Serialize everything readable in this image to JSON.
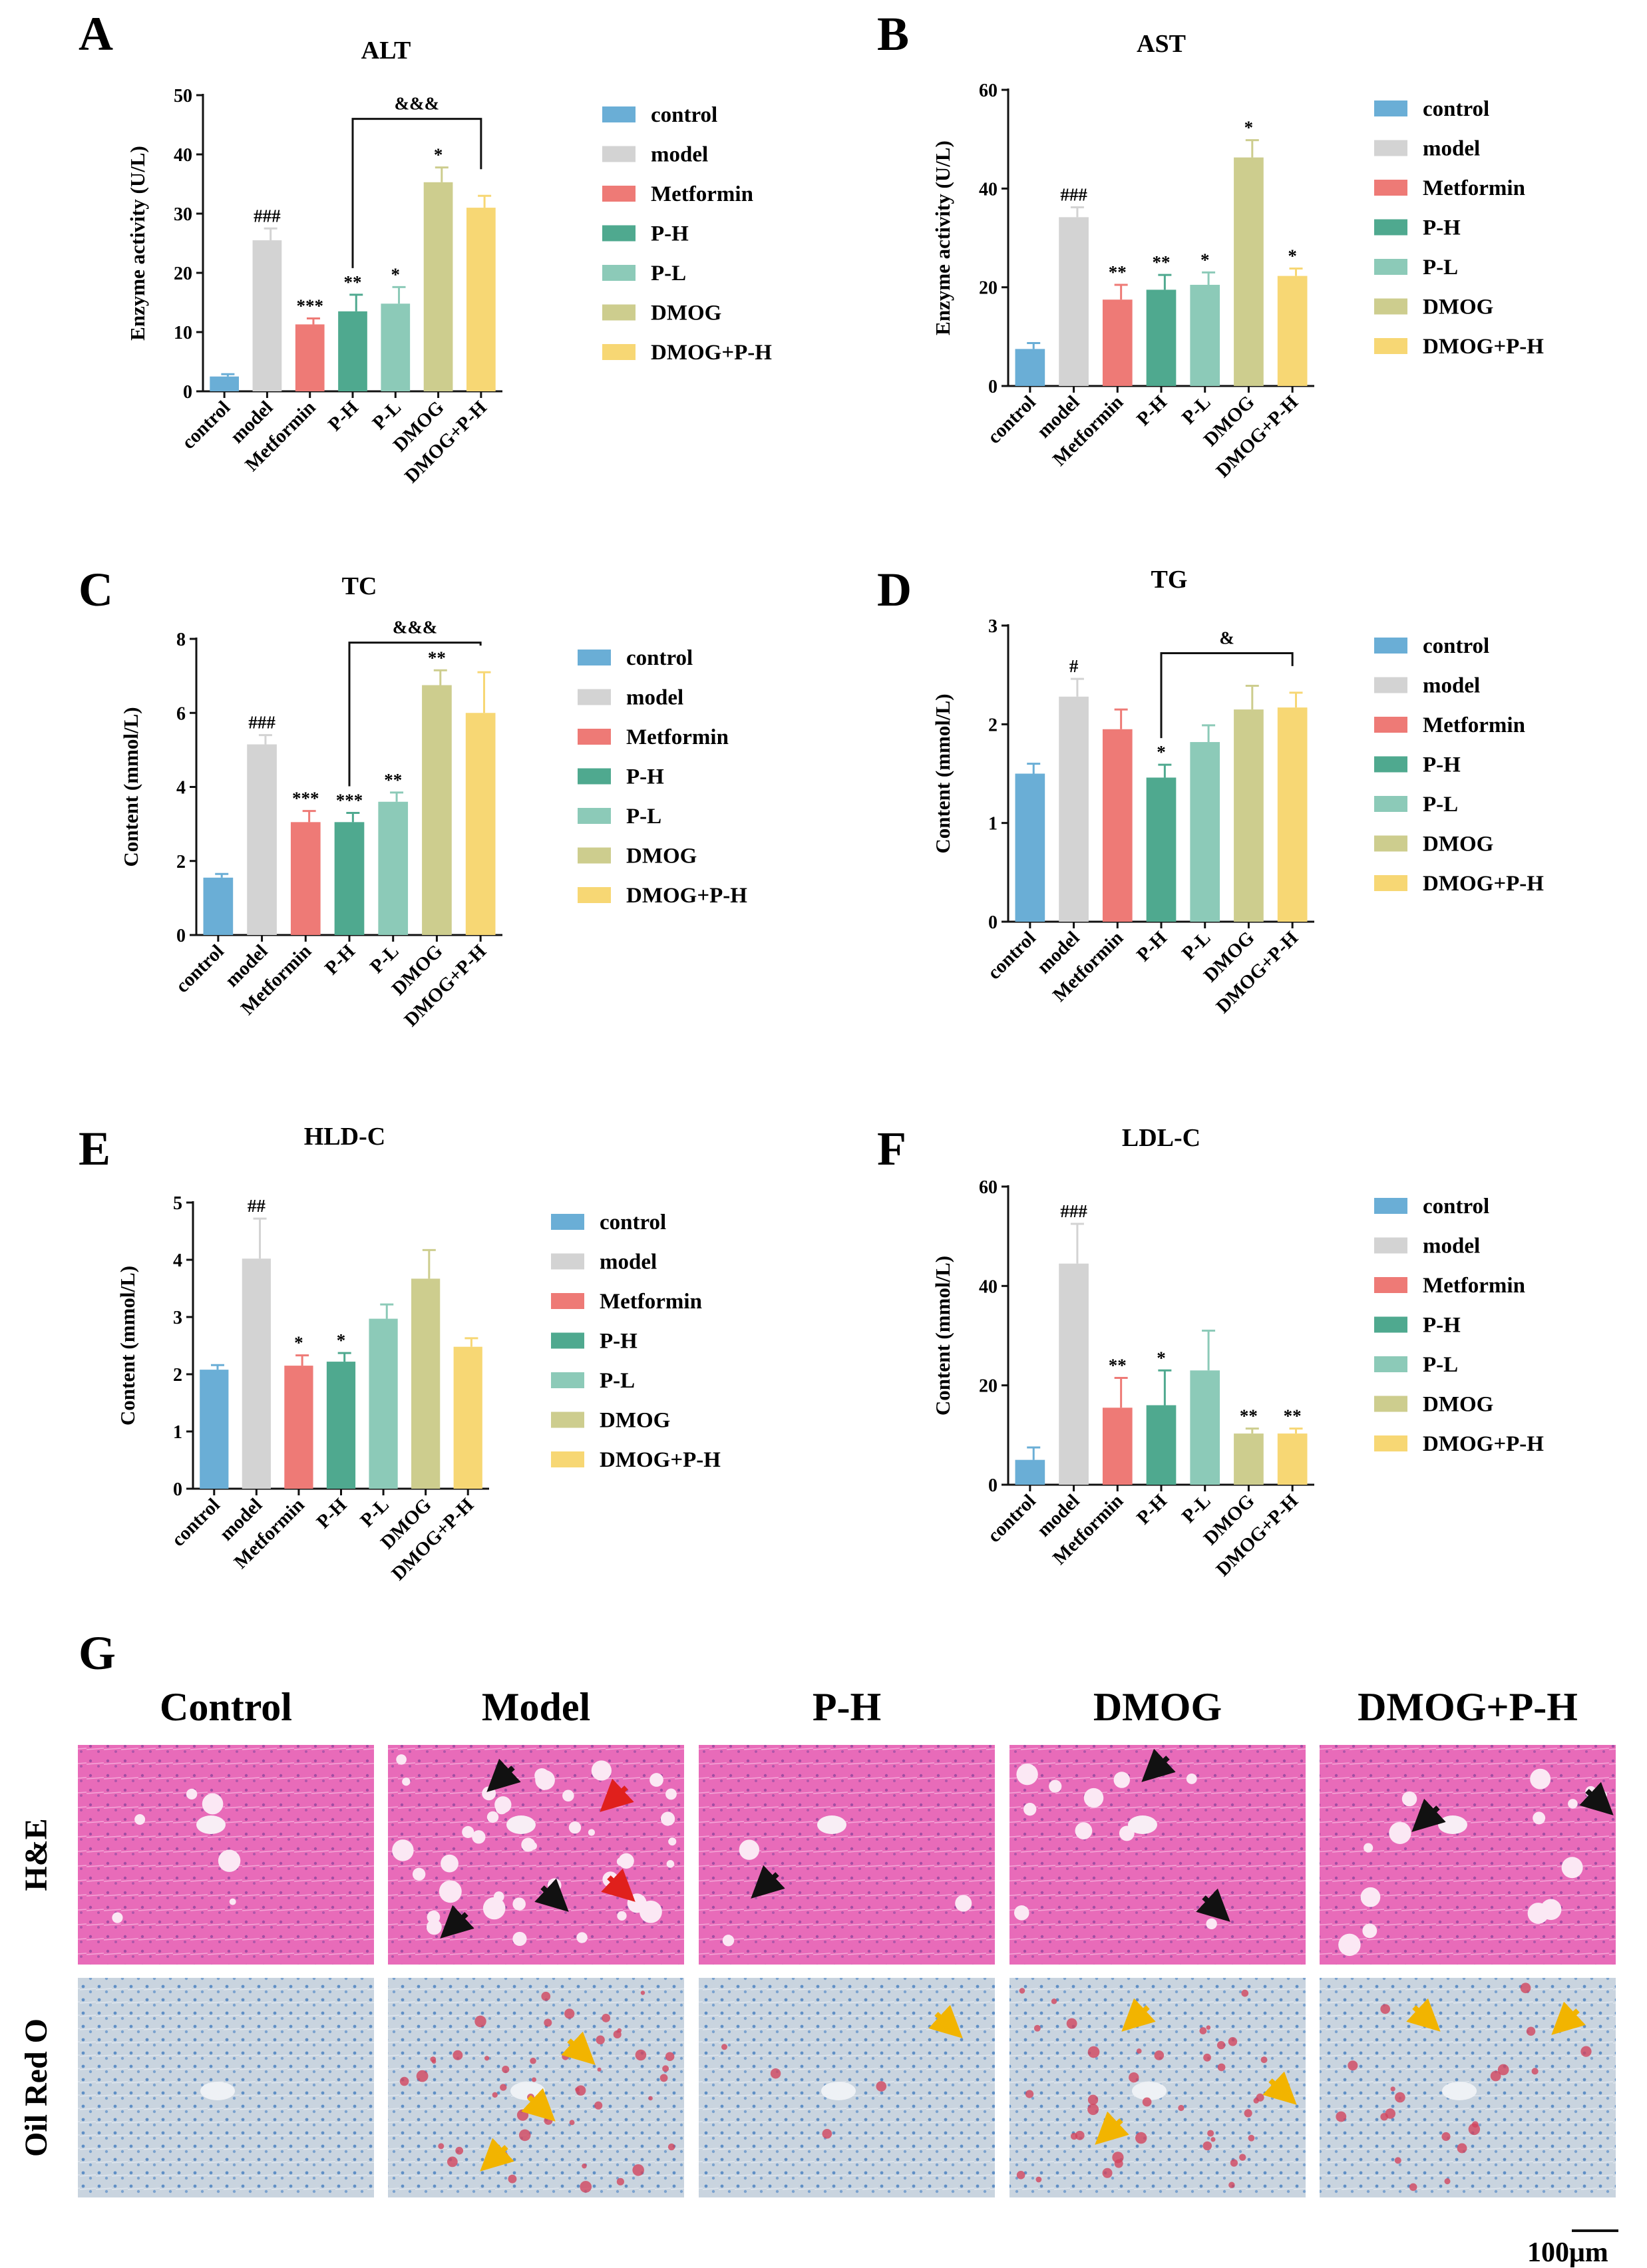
{
  "colors": {
    "control": "#6aaed6",
    "model": "#d3d3d3",
    "Metformin": "#ee7a76",
    "P-H": "#4fa98f",
    "P-L": "#8ccab8",
    "DMOG": "#cdcd8e",
    "DMOG+P-H": "#f7d774"
  },
  "chart_data": [
    {
      "panel": "A",
      "type": "bar",
      "title": "ALT",
      "ylabel": "Enzyme activity (U/L)",
      "ylim": [
        0,
        50
      ],
      "yticks": [
        0,
        10,
        20,
        30,
        40,
        50
      ],
      "categories": [
        "control",
        "model",
        "Metformin",
        "P-H",
        "P-L",
        "DMOG",
        "DMOG+P-H"
      ],
      "values": [
        2.5,
        25.5,
        11.3,
        13.5,
        14.8,
        35.3,
        31.0
      ],
      "errors": [
        0.4,
        2.0,
        1.0,
        2.8,
        2.8,
        2.5,
        2.0
      ],
      "annotations": [
        "",
        "###",
        "***",
        "**",
        "*",
        "*",
        ""
      ],
      "bracket": {
        "from": 3,
        "to": 6,
        "label": "&&&",
        "y": 46
      },
      "legend": [
        "control",
        "model",
        "Metformin",
        "P-H",
        "P-L",
        "DMOG",
        "DMOG+P-H"
      ]
    },
    {
      "panel": "B",
      "type": "bar",
      "title": "AST",
      "ylabel": "Enzyme activity (U/L)",
      "ylim": [
        0,
        60
      ],
      "yticks": [
        0,
        20,
        40,
        60
      ],
      "categories": [
        "control",
        "model",
        "Metformin",
        "P-H",
        "P-L",
        "DMOG",
        "DMOG+P-H"
      ],
      "values": [
        7.5,
        34.2,
        17.5,
        19.5,
        20.5,
        46.3,
        22.3
      ],
      "errors": [
        1.2,
        2.0,
        3.0,
        3.0,
        2.5,
        3.5,
        1.5
      ],
      "annotations": [
        "",
        "###",
        "**",
        "**",
        "*",
        "*",
        "*"
      ],
      "bracket": null,
      "legend": [
        "control",
        "model",
        "Metformin",
        "P-H",
        "P-L",
        "DMOG",
        "DMOG+P-H"
      ]
    },
    {
      "panel": "C",
      "type": "bar",
      "title": "TC",
      "ylabel": "Content (mmol/L)",
      "ylim": [
        0,
        8
      ],
      "yticks": [
        0,
        2,
        4,
        6,
        8
      ],
      "categories": [
        "control",
        "model",
        "Metformin",
        "P-H",
        "P-L",
        "DMOG",
        "DMOG+P-H"
      ],
      "values": [
        1.55,
        5.15,
        3.05,
        3.05,
        3.6,
        6.75,
        6.0
      ],
      "errors": [
        0.1,
        0.25,
        0.3,
        0.25,
        0.25,
        0.4,
        1.1
      ],
      "annotations": [
        "",
        "###",
        "***",
        "***",
        "**",
        "**",
        ""
      ],
      "bracket": {
        "from": 3,
        "to": 6,
        "label": "&&&",
        "y": 7.9
      },
      "legend": [
        "control",
        "model",
        "Metformin",
        "P-H",
        "P-L",
        "DMOG",
        "DMOG+P-H"
      ]
    },
    {
      "panel": "D",
      "type": "bar",
      "title": "TG",
      "ylabel": "Content (mmol/L)",
      "ylim": [
        0,
        3
      ],
      "yticks": [
        0,
        1,
        2,
        3
      ],
      "categories": [
        "control",
        "model",
        "Metformin",
        "P-H",
        "P-L",
        "DMOG",
        "DMOG+P-H"
      ],
      "values": [
        1.5,
        2.28,
        1.95,
        1.46,
        1.82,
        2.15,
        2.17
      ],
      "errors": [
        0.1,
        0.18,
        0.2,
        0.13,
        0.17,
        0.24,
        0.15
      ],
      "annotations": [
        "",
        "#",
        "",
        "*",
        "",
        "",
        ""
      ],
      "bracket": {
        "from": 3,
        "to": 6,
        "label": "&",
        "y": 2.72
      },
      "legend": [
        "control",
        "model",
        "Metformin",
        "P-H",
        "P-L",
        "DMOG",
        "DMOG+P-H"
      ]
    },
    {
      "panel": "E",
      "type": "bar",
      "title": "HLD-C",
      "ylabel": "Content (mmol/L)",
      "ylim": [
        0,
        5
      ],
      "yticks": [
        0,
        1,
        2,
        3,
        4,
        5
      ],
      "categories": [
        "control",
        "model",
        "Metformin",
        "P-H",
        "P-L",
        "DMOG",
        "DMOG+P-H"
      ],
      "values": [
        2.08,
        4.02,
        2.15,
        2.22,
        2.97,
        3.67,
        2.48
      ],
      "errors": [
        0.08,
        0.7,
        0.18,
        0.15,
        0.25,
        0.5,
        0.15
      ],
      "annotations": [
        "",
        "##",
        "*",
        "*",
        "",
        "",
        ""
      ],
      "bracket": null,
      "legend": [
        "control",
        "model",
        "Metformin",
        "P-H",
        "P-L",
        "DMOG",
        "DMOG+P-H"
      ]
    },
    {
      "panel": "F",
      "type": "bar",
      "title": "LDL-C",
      "ylabel": "Content (mmol/L)",
      "ylim": [
        0,
        60
      ],
      "yticks": [
        0,
        20,
        40,
        60
      ],
      "categories": [
        "control",
        "model",
        "Metformin",
        "P-H",
        "P-L",
        "DMOG",
        "DMOG+P-H"
      ],
      "values": [
        5.0,
        44.5,
        15.5,
        16.0,
        23.0,
        10.3,
        10.3
      ],
      "errors": [
        2.5,
        8.0,
        6.0,
        7.0,
        8.0,
        1.0,
        1.0
      ],
      "annotations": [
        "",
        "###",
        "**",
        "*",
        "",
        "**",
        "**"
      ],
      "bracket": null,
      "legend": [
        "control",
        "model",
        "Metformin",
        "P-H",
        "P-L",
        "DMOG",
        "DMOG+P-H"
      ]
    }
  ],
  "histology": {
    "panel": "G",
    "columns": [
      "Control",
      "Model",
      "P-H",
      "DMOG",
      "DMOG+P-H"
    ],
    "rows": [
      "H&E",
      "Oil Red O"
    ],
    "scale_bar": "100μm"
  }
}
